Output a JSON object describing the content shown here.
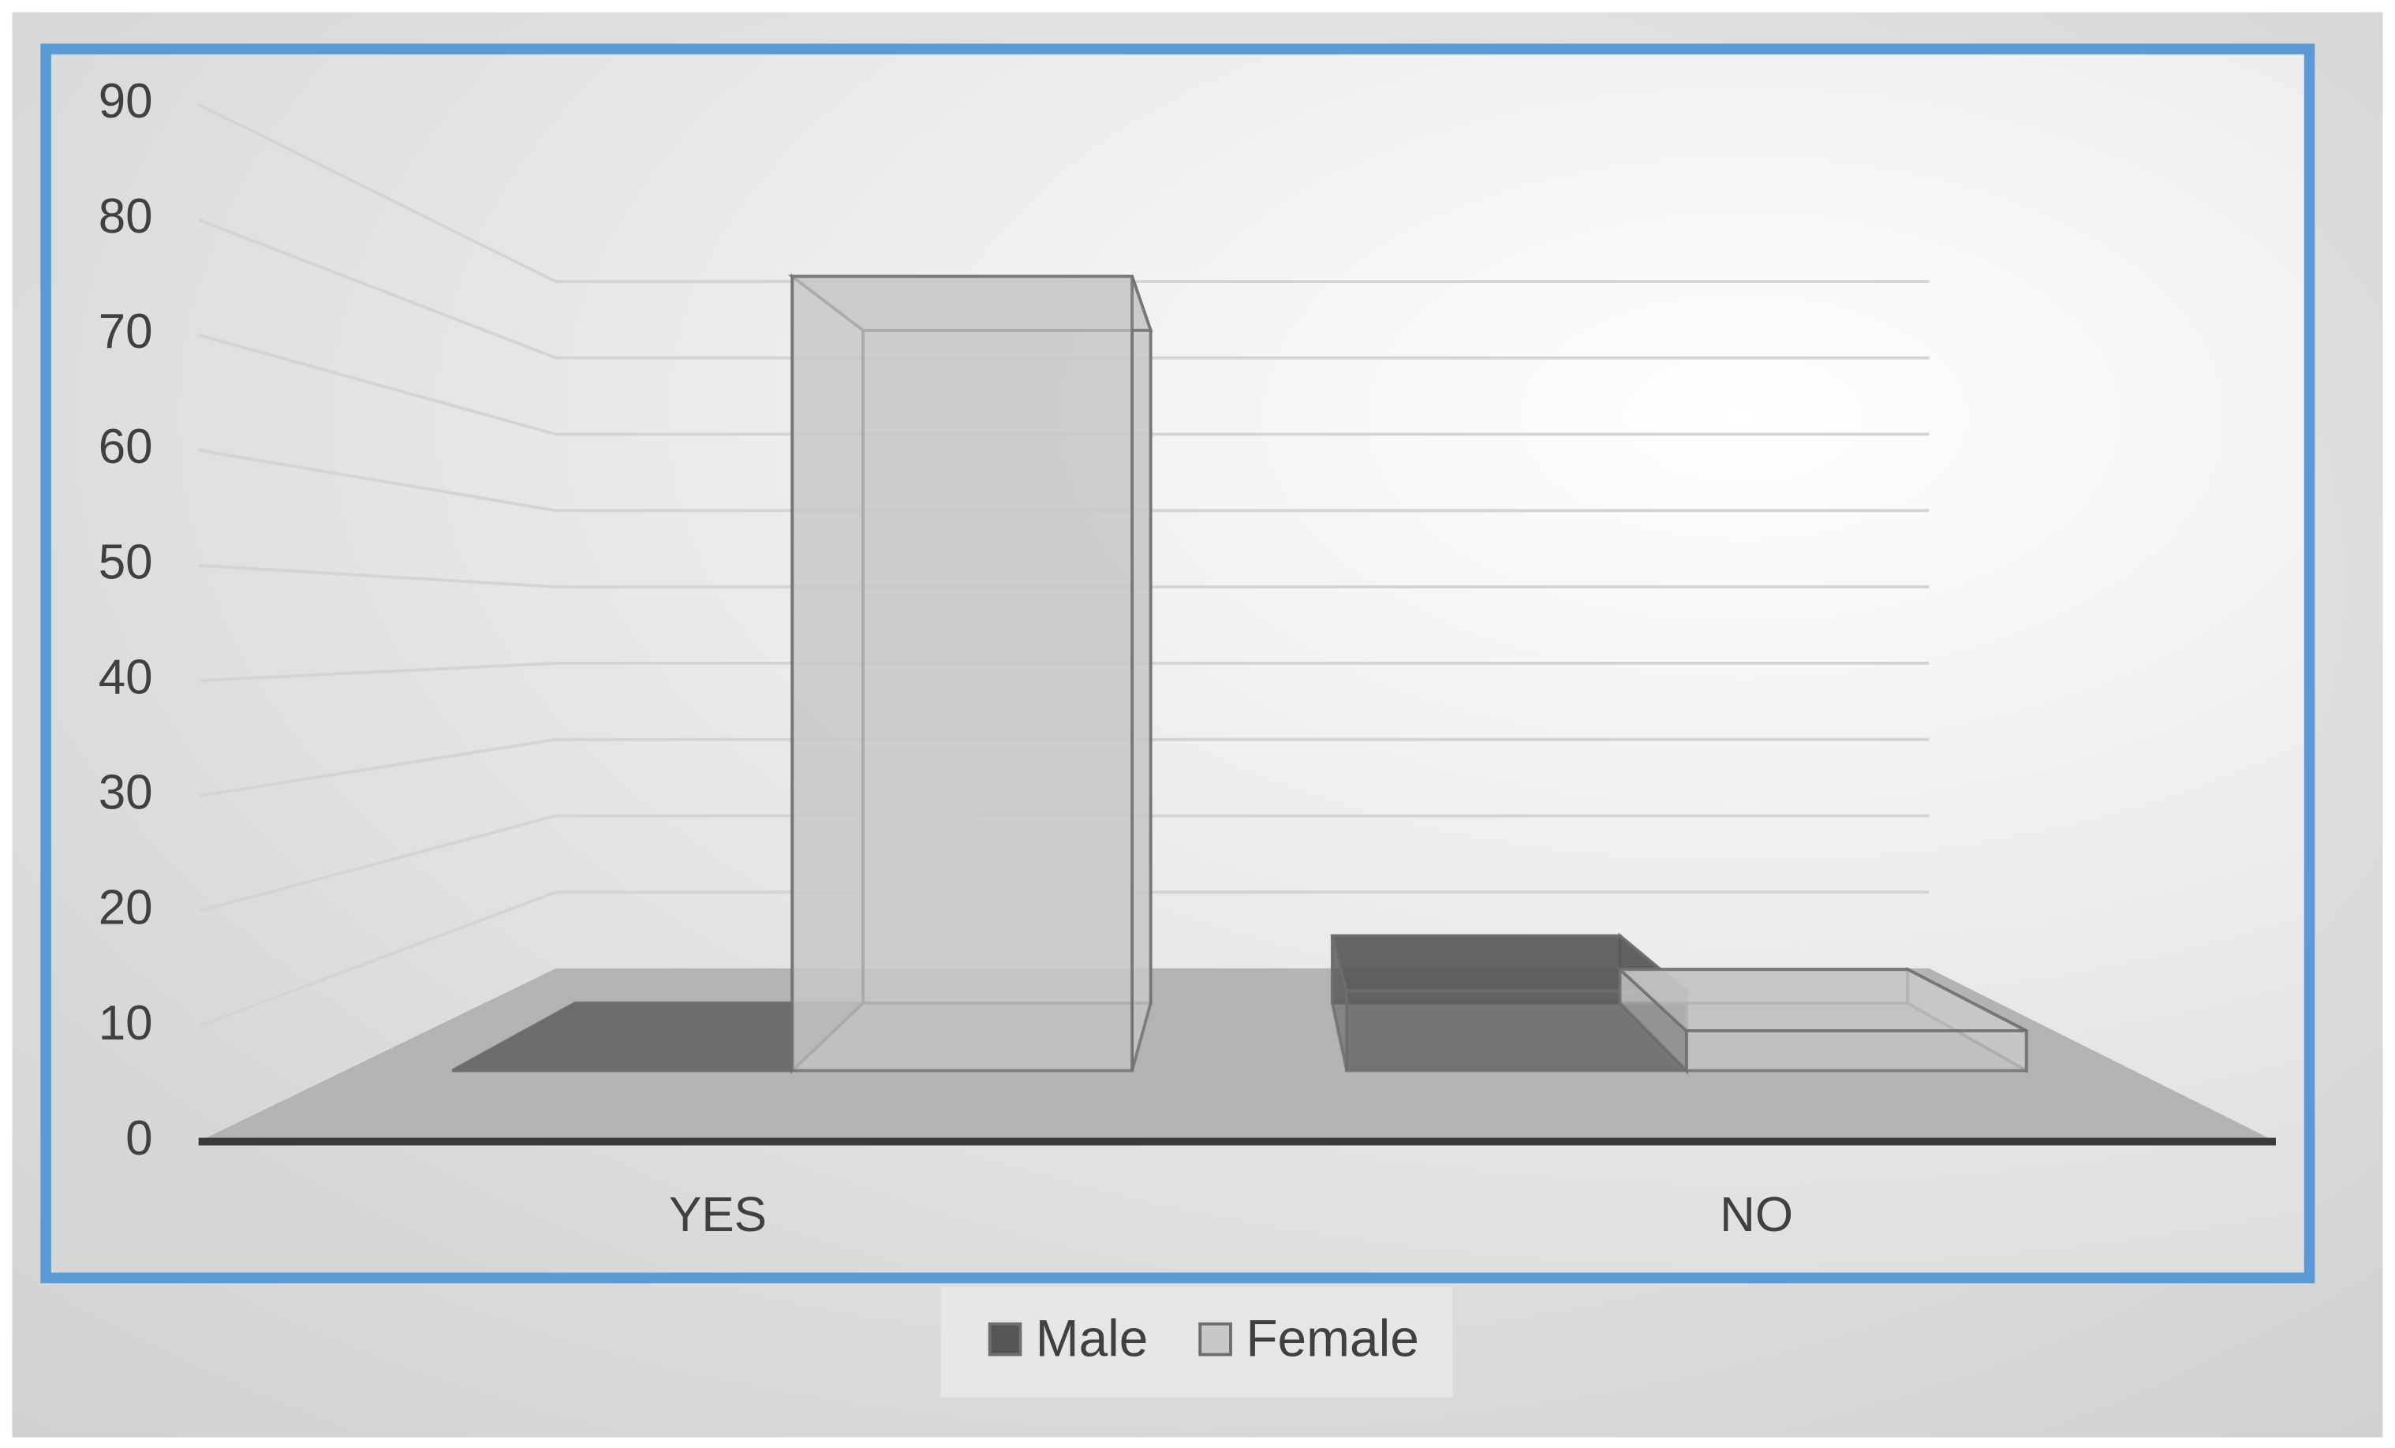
{
  "chart_data": {
    "type": "bar",
    "categories": [
      "YES",
      "NO"
    ],
    "series": [
      {
        "name": "Male",
        "color": "#555555",
        "values": [
          0,
          8
        ]
      },
      {
        "name": "Female",
        "color": "#c8c8c8",
        "values": [
          80,
          4
        ]
      }
    ],
    "ylim": [
      0,
      90
    ],
    "yticks": [
      0,
      10,
      20,
      30,
      40,
      50,
      60,
      70,
      80,
      90
    ],
    "grid": true,
    "legend": "bottom"
  }
}
